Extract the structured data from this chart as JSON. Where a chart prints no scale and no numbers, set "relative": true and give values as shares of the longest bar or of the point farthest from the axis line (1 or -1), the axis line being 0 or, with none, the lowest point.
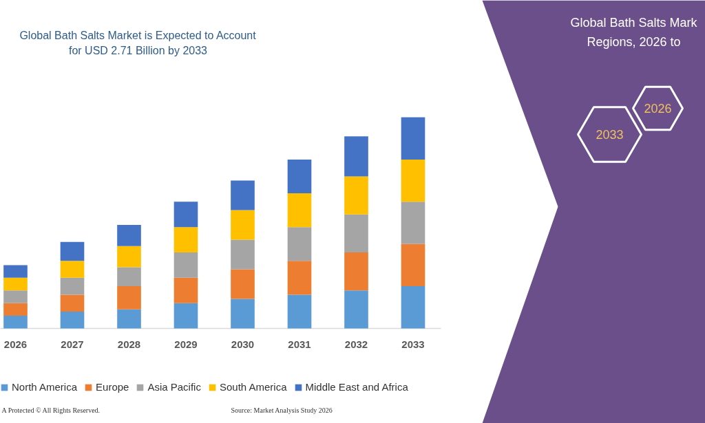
{
  "chart_data": {
    "type": "bar",
    "stacked": true,
    "relative": true,
    "title": "Global Bath Salts Market is Expected to Account for USD 2.71 Billion by 2033",
    "categories": [
      "2026",
      "2027",
      "2028",
      "2029",
      "2030",
      "2031",
      "2032",
      "2033"
    ],
    "series": [
      {
        "name": "North America",
        "color": "#5b9bd5",
        "values": [
          0.06,
          0.08,
          0.09,
          0.12,
          0.14,
          0.16,
          0.18,
          0.2
        ]
      },
      {
        "name": "Europe",
        "color": "#ed7d31",
        "values": [
          0.06,
          0.08,
          0.11,
          0.12,
          0.14,
          0.16,
          0.18,
          0.2
        ]
      },
      {
        "name": "Asia Pacific",
        "color": "#a5a5a5",
        "values": [
          0.06,
          0.08,
          0.09,
          0.12,
          0.14,
          0.16,
          0.18,
          0.2
        ]
      },
      {
        "name": "South America",
        "color": "#ffc000",
        "values": [
          0.06,
          0.08,
          0.1,
          0.12,
          0.14,
          0.16,
          0.18,
          0.2
        ]
      },
      {
        "name": "Middle East and Africa",
        "color": "#4472c4",
        "values": [
          0.06,
          0.09,
          0.1,
          0.12,
          0.14,
          0.16,
          0.19,
          0.2
        ]
      }
    ],
    "legend": "bottom",
    "grid": false,
    "annotations": [
      "Global Bath Salts Mark",
      "Regions, 2026 to",
      "2026",
      "2033",
      "A Protected © All Rights Reserved.",
      "Source: Market Analysis Study 2026"
    ]
  }
}
